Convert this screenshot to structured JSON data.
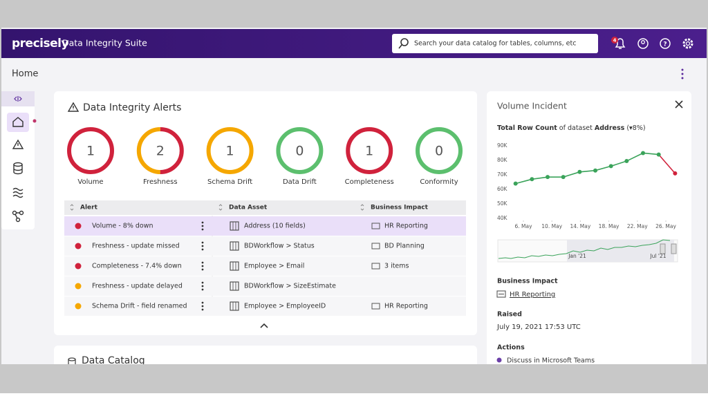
{
  "header": {
    "logo": "precisely",
    "product": "Data Integrity Suite",
    "search_placeholder": "Search your data catalog for tables, columns, etc",
    "notification_count": 4
  },
  "page": {
    "title": "Home"
  },
  "alerts_card": {
    "title": "Data Integrity Alerts",
    "summary": [
      {
        "label": "Volume",
        "count": 1,
        "colors": [
          "#d0223c"
        ]
      },
      {
        "label": "Freshness",
        "count": 2,
        "colors": [
          "#d0223c",
          "#f5a700"
        ]
      },
      {
        "label": "Schema Drift",
        "count": 1,
        "colors": [
          "#f5a700"
        ]
      },
      {
        "label": "Data Drift",
        "count": 0,
        "colors": [
          "#5cbf6e"
        ]
      },
      {
        "label": "Completeness",
        "count": 1,
        "colors": [
          "#d0223c"
        ]
      },
      {
        "label": "Conformity",
        "count": 0,
        "colors": [
          "#5cbf6e"
        ]
      }
    ],
    "table": {
      "columns": [
        "Alert",
        "Data Asset",
        "Business Impact"
      ],
      "rows": [
        {
          "alert": "Volume - 8% down",
          "color": "#d0223c",
          "asset": "Address (10 fields)",
          "impact": "HR Reporting",
          "selected": true
        },
        {
          "alert": "Freshness - update missed",
          "color": "#d0223c",
          "asset": "BDWorkflow > Status",
          "impact": "BD Planning"
        },
        {
          "alert": "Completeness - 7.4% down",
          "color": "#d0223c",
          "asset": "Employee > Email",
          "impact": "3 items"
        },
        {
          "alert": "Freshness - update delayed",
          "color": "#f5a700",
          "asset": "BDWorkflow > SizeEstimate"
        },
        {
          "alert": "Schema Drift - field renamed",
          "color": "#f5a700",
          "asset": "Employee > EmployeeID",
          "impact": "HR Reporting"
        }
      ]
    }
  },
  "catalog_card": {
    "title": "Data Catalog"
  },
  "incident_panel": {
    "title": "Volume Incident",
    "chart_heading": [
      "Total Row Count",
      " of dataset ",
      "Address",
      " (▾8%)"
    ],
    "navigator_labels": [
      "Jan '21",
      "Jul '21"
    ],
    "business_impact_label": "Business Impact",
    "business_impact": "HR Reporting",
    "raised_label": "Raised",
    "raised": "July 19, 2021 17:53 UTC",
    "actions_label": "Actions",
    "actions": [
      "Discuss in Microsoft Teams"
    ]
  },
  "chart_data": {
    "type": "line",
    "x": [
      4.9,
      7.2,
      9.4,
      11.6,
      13.9,
      16.1,
      18.3,
      20.5,
      22.8,
      25.0,
      27.3
    ],
    "values": [
      64,
      67,
      68.5,
      68.5,
      72,
      73,
      76,
      79.5,
      85,
      84,
      71
    ],
    "color": "#3aa35a",
    "last_segment_color": "#d0223c",
    "xlim": [
      4,
      28
    ],
    "xticks": [
      {
        "value": 6,
        "label": "6. May"
      },
      {
        "value": 10,
        "label": "10. May"
      },
      {
        "value": 14,
        "label": "14. May"
      },
      {
        "value": 18,
        "label": "18. May"
      },
      {
        "value": 22,
        "label": "22. May"
      },
      {
        "value": 26,
        "label": "26. May"
      }
    ],
    "ylim": [
      40,
      90
    ],
    "yticks": [
      {
        "value": 40,
        "label": "40K"
      },
      {
        "value": 50,
        "label": "50K"
      },
      {
        "value": 60,
        "label": "60K"
      },
      {
        "value": 70,
        "label": "70K"
      },
      {
        "value": 80,
        "label": "80K"
      },
      {
        "value": 90,
        "label": "90K"
      }
    ]
  }
}
